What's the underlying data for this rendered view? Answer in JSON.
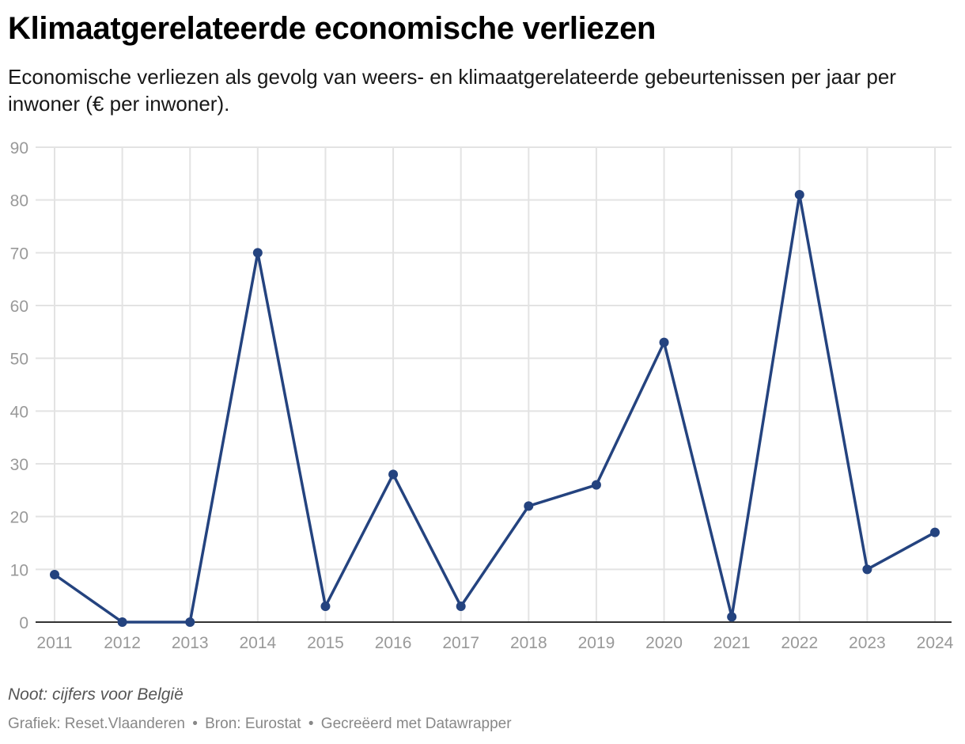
{
  "title": "Klimaatgerelateerde economische verliezen",
  "subtitle": "Economische verliezen als gevolg van weers- en klimaatgerelateerde gebeurtenissen per jaar per inwoner (€ per inwoner).",
  "note": "Noot: cijfers voor België",
  "credits": {
    "graphic": "Grafiek: Reset.Vlaanderen",
    "source": "Bron: Eurostat",
    "made_with": "Gecreëerd met Datawrapper",
    "separator": "•"
  },
  "colors": {
    "line": "#24437f",
    "grid": "#e3e3e3",
    "axis": "#333333",
    "tick_label": "#999999"
  },
  "chart_data": {
    "type": "line",
    "title": "Klimaatgerelateerde economische verliezen",
    "xlabel": "",
    "ylabel": "",
    "x": [
      "2011",
      "2012",
      "2013",
      "2014",
      "2015",
      "2016",
      "2017",
      "2018",
      "2019",
      "2020",
      "2021",
      "2022",
      "2023",
      "2024"
    ],
    "series": [
      {
        "values": [
          9,
          0,
          0,
          70,
          3,
          28,
          3,
          22,
          26,
          53,
          1,
          81,
          10,
          17
        ]
      }
    ],
    "ylim": [
      0,
      90
    ],
    "yticks": [
      0,
      10,
      20,
      30,
      40,
      50,
      60,
      70,
      80,
      90
    ],
    "grid": true,
    "legend": "none"
  }
}
